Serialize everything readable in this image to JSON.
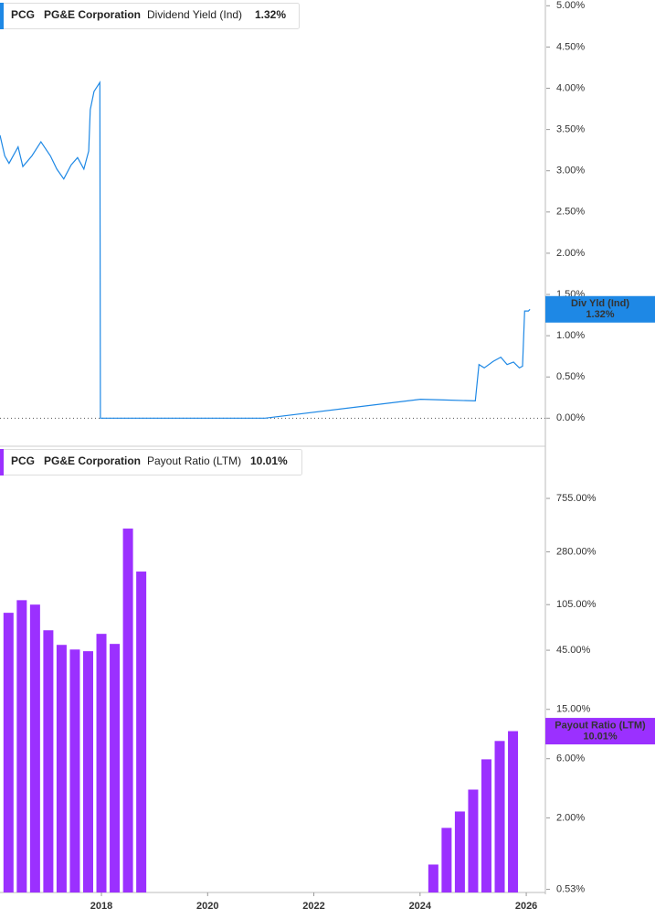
{
  "chart_data": [
    {
      "type": "line",
      "header": {
        "ticker": "PCG",
        "company": "PG&E Corporation",
        "metric": "Dividend Yield (Ind)",
        "current": "1.32%"
      },
      "callout": {
        "label": "Div Yld (Ind)",
        "value": "1.32%"
      },
      "color": "#1e88e5",
      "x": [
        2016.09,
        2016.18,
        2016.26,
        2016.43,
        2016.52,
        2016.69,
        2016.86,
        2017.04,
        2017.16,
        2017.29,
        2017.43,
        2017.55,
        2017.67,
        2017.76,
        2017.79,
        2017.86,
        2017.91,
        2017.97,
        2017.98,
        2021.08,
        2024.01,
        2024.52,
        2025.04,
        2025.11,
        2025.21,
        2025.38,
        2025.52,
        2025.64,
        2025.76,
        2025.87,
        2025.93,
        2025.97,
        2026.04,
        2026.07
      ],
      "values": [
        3.43,
        3.18,
        3.09,
        3.29,
        3.05,
        3.18,
        3.35,
        3.18,
        3.02,
        2.9,
        3.07,
        3.16,
        3.02,
        3.24,
        3.74,
        3.96,
        4.01,
        4.07,
        0,
        0,
        0.23,
        0.22,
        0.21,
        0.65,
        0.61,
        0.69,
        0.74,
        0.65,
        0.68,
        0.61,
        0.63,
        1.3,
        1.3,
        1.32
      ],
      "xlim": [
        2016.09,
        2026.36
      ],
      "ylim": [
        -0.34,
        5.07
      ],
      "yticks": [
        {
          "value": 5,
          "label": "5.00%"
        },
        {
          "value": 4.5,
          "label": "4.50%"
        },
        {
          "value": 4,
          "label": "4.00%"
        },
        {
          "value": 3.5,
          "label": "3.50%"
        },
        {
          "value": 3,
          "label": "3.00%"
        },
        {
          "value": 2.5,
          "label": "2.50%"
        },
        {
          "value": 2,
          "label": "2.00%"
        },
        {
          "value": 1.5,
          "label": "1.50%"
        },
        {
          "value": 1,
          "label": "1.00%"
        },
        {
          "value": 0.5,
          "label": "0.50%"
        },
        {
          "value": 0,
          "label": "0.00%"
        }
      ],
      "zero_line": true
    },
    {
      "type": "bar",
      "header": {
        "ticker": "PCG",
        "company": "PG&E Corporation",
        "metric": "Payout Ratio (LTM)",
        "current": "10.01%"
      },
      "callout": {
        "label": "Payout Ratio (LTM)",
        "value": "10.01%"
      },
      "color": "#9b30ff",
      "log_scale": true,
      "x": [
        2016.25,
        2016.5,
        2016.75,
        2017,
        2017.25,
        2017.5,
        2017.75,
        2018,
        2018.25,
        2018.5,
        2018.75,
        2024.25,
        2024.5,
        2024.75,
        2025,
        2025.25,
        2025.5,
        2025.75
      ],
      "values": [
        90.2,
        114,
        105,
        65.2,
        49.7,
        45.6,
        44.2,
        61,
        50.6,
        431,
        194,
        0.84,
        1.66,
        2.25,
        3.38,
        5.93,
        8.34,
        10.01
      ],
      "xlim": [
        2016.09,
        2026.36
      ],
      "xticks": [
        2018,
        2020,
        2022,
        2024,
        2026
      ],
      "ylim": [
        0.5,
        1923
      ],
      "yticks": [
        {
          "value": 755,
          "label": "755.00%"
        },
        {
          "value": 280,
          "label": "280.00%"
        },
        {
          "value": 105,
          "label": "105.00%"
        },
        {
          "value": 45,
          "label": "45.00%"
        },
        {
          "value": 15,
          "label": "15.00%"
        },
        {
          "value": 6,
          "label": "6.00%"
        },
        {
          "value": 2,
          "label": "2.00%"
        },
        {
          "value": 0.53,
          "label": "0.53%"
        }
      ]
    }
  ]
}
